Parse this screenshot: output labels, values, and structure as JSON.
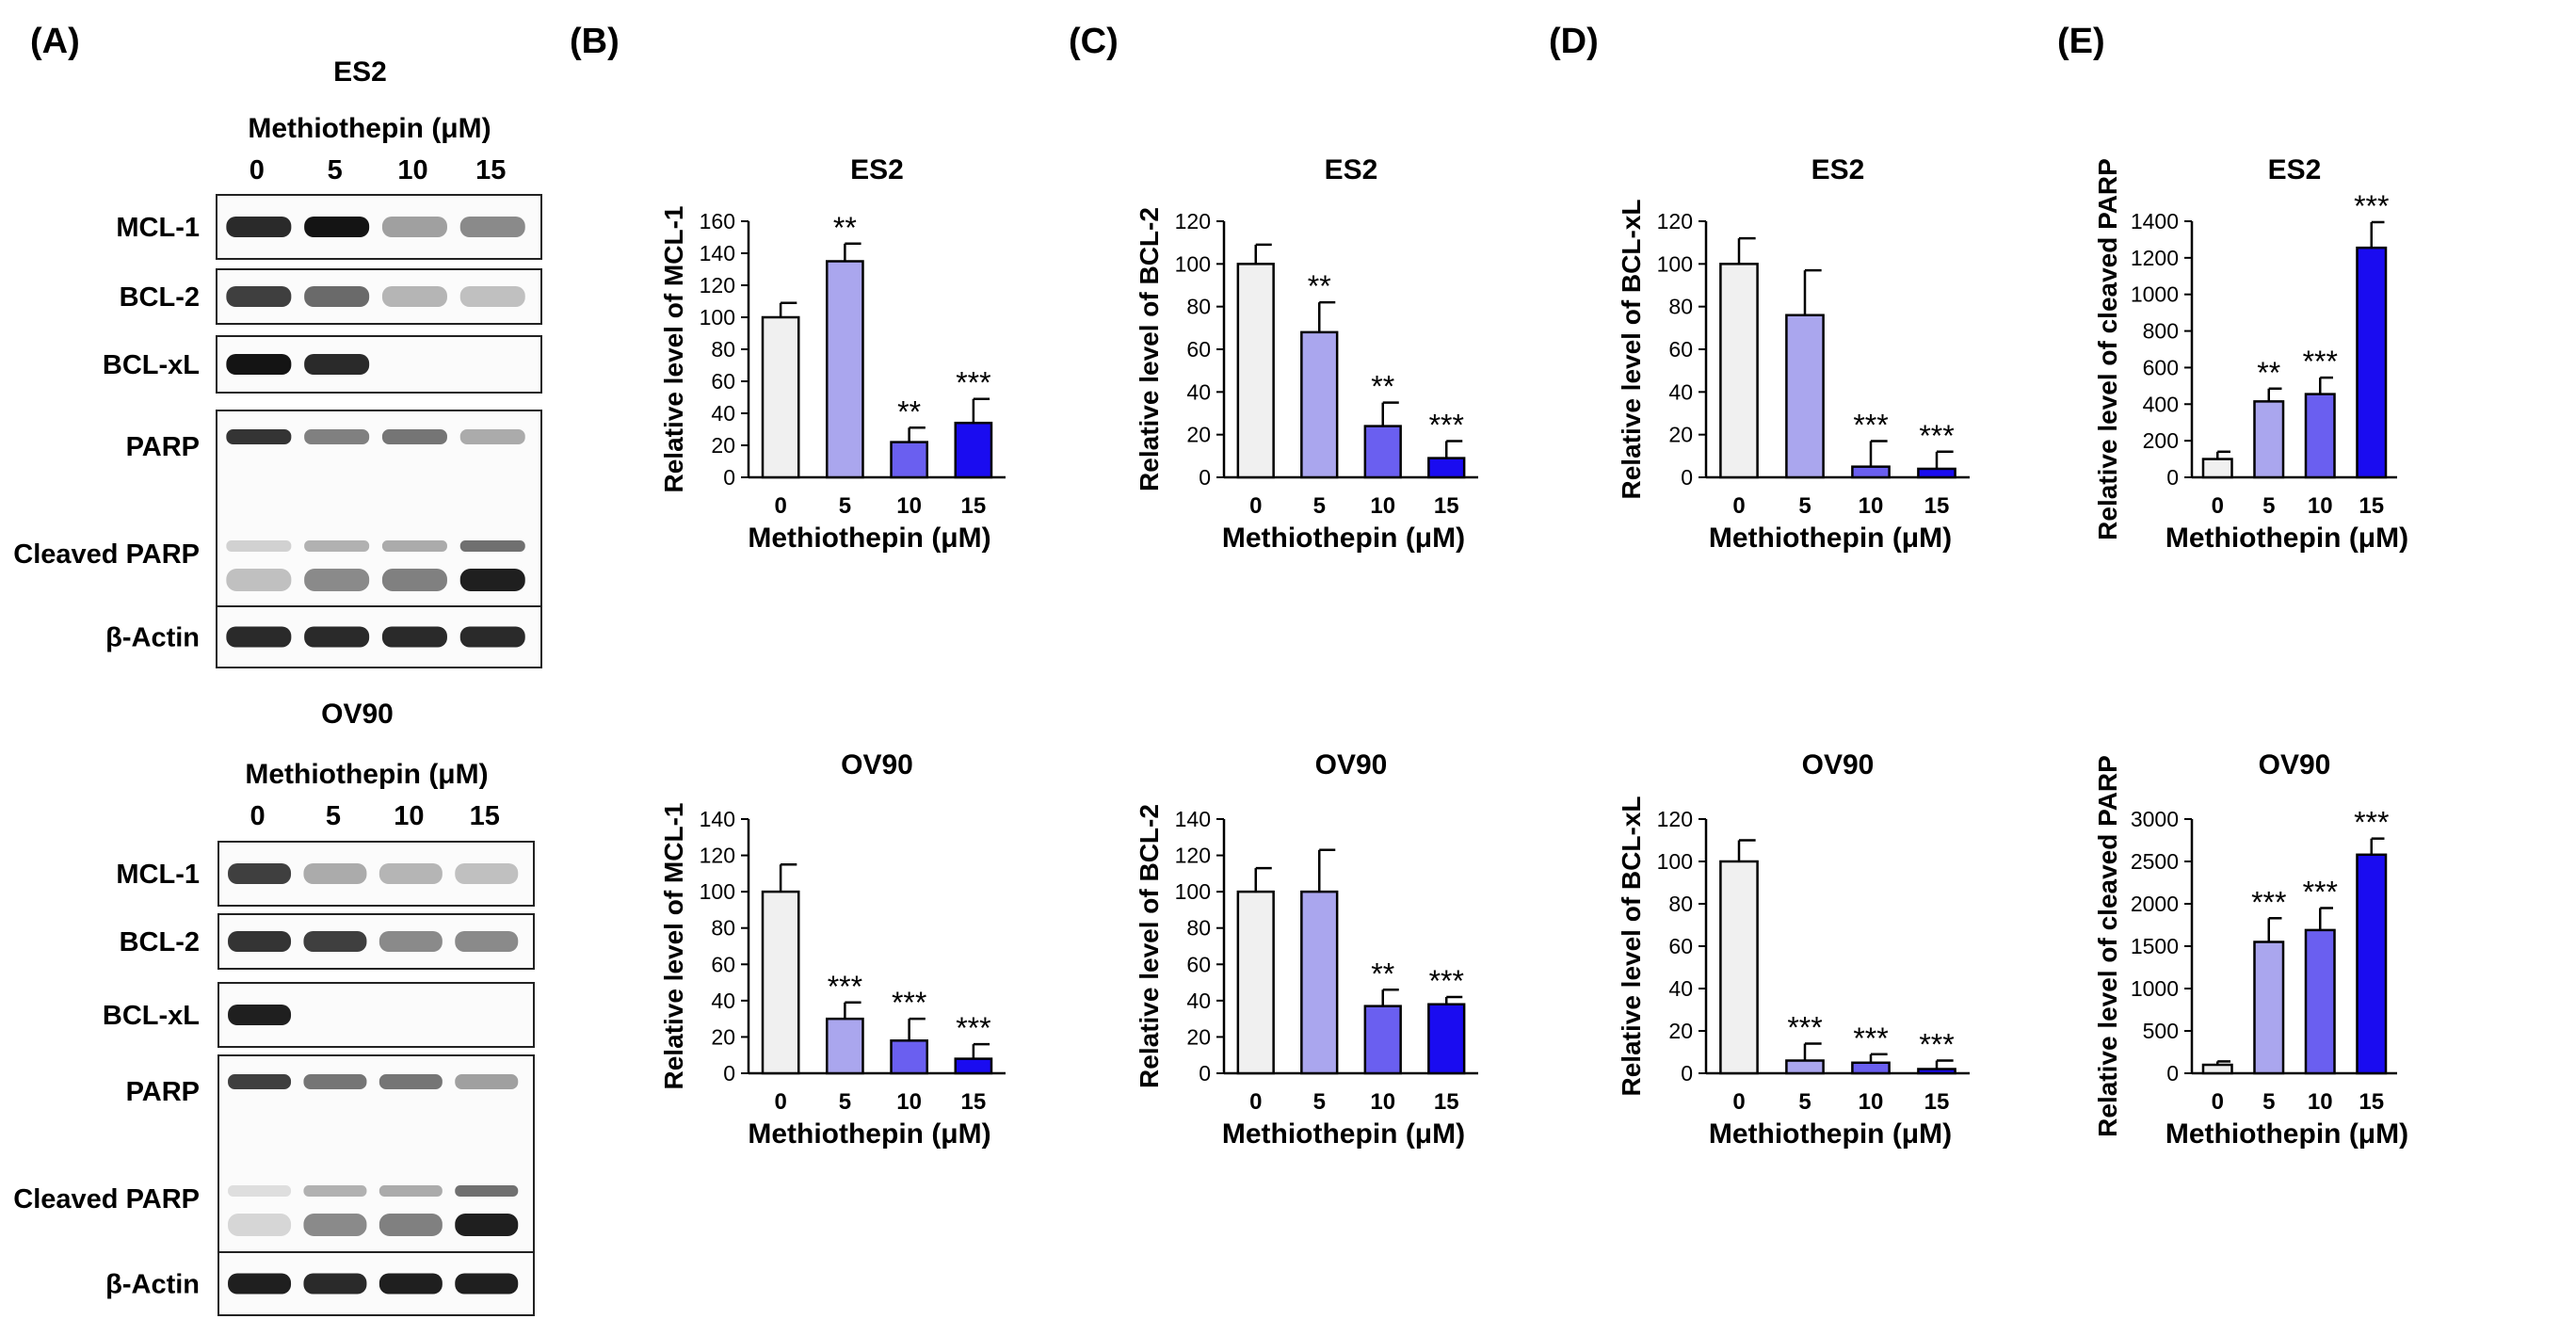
{
  "panel_labels": [
    "(A)",
    "(B)",
    "(C)",
    "(D)",
    "(E)"
  ],
  "blots": [
    {
      "cell_line": "ES2",
      "treatment_label": "Methiothepin (μM)",
      "doses": [
        "0",
        "5",
        "10",
        "15"
      ],
      "rows": [
        {
          "label": "MCL-1",
          "intensity": [
            0.9,
            1.0,
            0.35,
            0.45
          ]
        },
        {
          "label": "BCL-2",
          "intensity": [
            0.8,
            0.6,
            0.25,
            0.2
          ]
        },
        {
          "label": "BCL-xL",
          "intensity": [
            1.0,
            0.9,
            0.0,
            0.0
          ]
        },
        {
          "label": "PARP",
          "cleaved_label": "Cleaved PARP",
          "intensity": [
            0.85,
            0.5,
            0.55,
            0.3
          ],
          "cleaved_intensity": [
            0.2,
            0.45,
            0.5,
            0.95
          ]
        },
        {
          "label": "β-Actin",
          "intensity": [
            0.9,
            0.9,
            0.9,
            0.9
          ]
        }
      ]
    },
    {
      "cell_line": "OV90",
      "treatment_label": "Methiothepin (μM)",
      "doses": [
        "0",
        "5",
        "10",
        "15"
      ],
      "rows": [
        {
          "label": "MCL-1",
          "intensity": [
            0.8,
            0.3,
            0.25,
            0.2
          ]
        },
        {
          "label": "BCL-2",
          "intensity": [
            0.85,
            0.8,
            0.45,
            0.45
          ]
        },
        {
          "label": "BCL-xL",
          "intensity": [
            0.95,
            0.0,
            0.0,
            0.0
          ]
        },
        {
          "label": "PARP",
          "cleaved_label": "Cleaved PARP",
          "intensity": [
            0.8,
            0.55,
            0.55,
            0.35
          ],
          "cleaved_intensity": [
            0.1,
            0.45,
            0.5,
            0.95
          ]
        },
        {
          "label": "β-Actin",
          "intensity": [
            0.95,
            0.9,
            0.95,
            0.95
          ]
        }
      ]
    }
  ],
  "colors": [
    "#f0f0f0",
    "#aaa6ee",
    "#6a5ff0",
    "#1a0cf0"
  ],
  "chart_data": [
    {
      "panel": "(B)",
      "type": "bar",
      "title": "ES2",
      "xlabel": "Methiothepin (μM)",
      "ylabel": "Relative level of MCL-1",
      "categories": [
        "0",
        "5",
        "10",
        "15"
      ],
      "values": [
        100,
        135,
        22,
        34
      ],
      "errors": [
        9,
        11,
        9,
        15
      ],
      "significance": [
        "",
        "**",
        "**",
        "***"
      ],
      "ylim": [
        0,
        160
      ],
      "yticks": [
        0,
        20,
        40,
        60,
        80,
        100,
        120,
        140,
        160
      ]
    },
    {
      "panel": "(C)",
      "type": "bar",
      "title": "ES2",
      "xlabel": "Methiothepin (μM)",
      "ylabel": "Relative level of BCL-2",
      "categories": [
        "0",
        "5",
        "10",
        "15"
      ],
      "values": [
        100,
        68,
        24,
        9
      ],
      "errors": [
        9,
        14,
        11,
        8
      ],
      "significance": [
        "",
        "**",
        "**",
        "***"
      ],
      "ylim": [
        0,
        120
      ],
      "yticks": [
        0,
        20,
        40,
        60,
        80,
        100,
        120
      ]
    },
    {
      "panel": "(D)",
      "type": "bar",
      "title": "ES2",
      "xlabel": "Methiothepin (μM)",
      "ylabel": "Relative level of BCL-xL",
      "categories": [
        "0",
        "5",
        "10",
        "15"
      ],
      "values": [
        100,
        76,
        5,
        4
      ],
      "errors": [
        12,
        21,
        12,
        8
      ],
      "significance": [
        "",
        "",
        "***",
        "***"
      ],
      "ylim": [
        0,
        120
      ],
      "yticks": [
        0,
        20,
        40,
        60,
        80,
        100,
        120
      ]
    },
    {
      "panel": "(E)",
      "type": "bar",
      "title": "ES2",
      "xlabel": "Methiothepin (μM)",
      "ylabel": "Relative level of cleaved PARP",
      "categories": [
        "0",
        "5",
        "10",
        "15"
      ],
      "values": [
        100,
        415,
        455,
        1255
      ],
      "errors": [
        40,
        70,
        90,
        140
      ],
      "significance": [
        "",
        "**",
        "***",
        "***"
      ],
      "ylim": [
        0,
        1400
      ],
      "yticks": [
        0,
        200,
        400,
        600,
        800,
        1000,
        1200,
        1400
      ]
    },
    {
      "panel": "(B)",
      "type": "bar",
      "title": "OV90",
      "xlabel": "Methiothepin (μM)",
      "ylabel": "Relative level of MCL-1",
      "categories": [
        "0",
        "5",
        "10",
        "15"
      ],
      "values": [
        100,
        30,
        18,
        8
      ],
      "errors": [
        15,
        9,
        12,
        8
      ],
      "significance": [
        "",
        "***",
        "***",
        "***"
      ],
      "ylim": [
        0,
        140
      ],
      "yticks": [
        0,
        20,
        40,
        60,
        80,
        100,
        120,
        140
      ]
    },
    {
      "panel": "(C)",
      "type": "bar",
      "title": "OV90",
      "xlabel": "Methiothepin (μM)",
      "ylabel": "Relative level of BCL-2",
      "categories": [
        "0",
        "5",
        "10",
        "15"
      ],
      "values": [
        100,
        100,
        37,
        38
      ],
      "errors": [
        13,
        23,
        9,
        4
      ],
      "significance": [
        "",
        "",
        "**",
        "***"
      ],
      "ylim": [
        0,
        140
      ],
      "yticks": [
        0,
        20,
        40,
        60,
        80,
        100,
        120,
        140
      ]
    },
    {
      "panel": "(D)",
      "type": "bar",
      "title": "OV90",
      "xlabel": "Methiothepin (μM)",
      "ylabel": "Relative level of BCL-xL",
      "categories": [
        "0",
        "5",
        "10",
        "15"
      ],
      "values": [
        100,
        6,
        5,
        2
      ],
      "errors": [
        10,
        8,
        4,
        4
      ],
      "significance": [
        "",
        "***",
        "***",
        "***"
      ],
      "ylim": [
        0,
        120
      ],
      "yticks": [
        0,
        20,
        40,
        60,
        80,
        100,
        120
      ]
    },
    {
      "panel": "(E)",
      "type": "bar",
      "title": "OV90",
      "xlabel": "Methiothepin (μM)",
      "ylabel": "Relative level of cleaved PARP",
      "categories": [
        "0",
        "5",
        "10",
        "15"
      ],
      "values": [
        100,
        1550,
        1690,
        2580
      ],
      "errors": [
        40,
        280,
        260,
        190
      ],
      "significance": [
        "",
        "***",
        "***",
        "***"
      ],
      "ylim": [
        0,
        3000
      ],
      "yticks": [
        0,
        500,
        1000,
        1500,
        2000,
        2500,
        3000
      ]
    }
  ]
}
